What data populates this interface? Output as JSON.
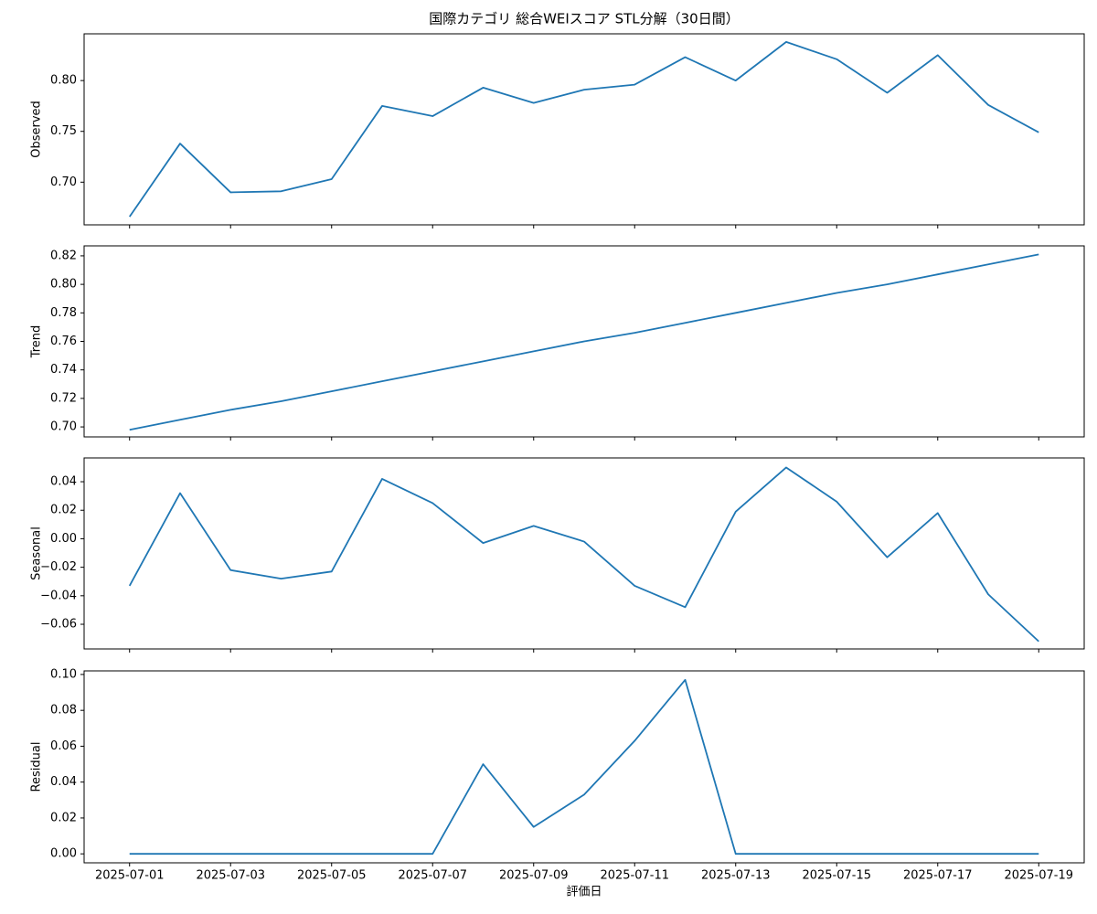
{
  "chart_data": [
    {
      "type": "line",
      "title": "国際カテゴリ 総合WEIスコア STL分解（30日間）",
      "ylabel": "Observed",
      "series": [
        {
          "color": "#1f77b4",
          "values": [
            0.666,
            0.738,
            0.69,
            0.691,
            0.703,
            0.775,
            0.765,
            0.793,
            0.778,
            0.791,
            0.796,
            0.823,
            0.8,
            0.838,
            0.821,
            0.788,
            0.825,
            0.776,
            0.749
          ]
        }
      ],
      "ylim": [
        0.658,
        0.846
      ],
      "yticks": [
        {
          "value": 0.7,
          "label": "0.70"
        },
        {
          "value": 0.75,
          "label": "0.75"
        },
        {
          "value": 0.8,
          "label": "0.80"
        }
      ]
    },
    {
      "type": "line",
      "ylabel": "Trend",
      "series": [
        {
          "color": "#1f77b4",
          "values": [
            0.698,
            0.705,
            0.712,
            0.718,
            0.725,
            0.732,
            0.739,
            0.746,
            0.753,
            0.76,
            0.766,
            0.773,
            0.78,
            0.787,
            0.794,
            0.8,
            0.807,
            0.814,
            0.821
          ]
        }
      ],
      "ylim": [
        0.693,
        0.827
      ],
      "yticks": [
        {
          "value": 0.7,
          "label": "0.70"
        },
        0.72,
        0.74,
        0.76,
        0.78,
        {
          "value": 0.8,
          "label": "0.80"
        },
        0.82
      ]
    },
    {
      "type": "line",
      "ylabel": "Seasonal",
      "series": [
        {
          "color": "#1f77b4",
          "values": [
            -0.033,
            0.032,
            -0.022,
            -0.028,
            -0.023,
            0.042,
            0.025,
            -0.003,
            0.009,
            -0.002,
            -0.033,
            -0.048,
            0.019,
            0.05,
            0.026,
            -0.013,
            0.018,
            -0.039,
            -0.072
          ]
        }
      ],
      "ylim": [
        -0.0773,
        0.0567
      ],
      "yticks": [
        {
          "value": -0.06,
          "label": "−0.06"
        },
        {
          "value": -0.04,
          "label": "−0.04"
        },
        {
          "value": -0.02,
          "label": "−0.02"
        },
        {
          "value": 0,
          "label": "0.00"
        },
        0.02,
        0.04
      ]
    },
    {
      "type": "line",
      "ylabel": "Residual",
      "xlabel": "評価日",
      "x": [
        "2025-07-01",
        "2025-07-02",
        "2025-07-03",
        "2025-07-04",
        "2025-07-05",
        "2025-07-06",
        "2025-07-07",
        "2025-07-08",
        "2025-07-09",
        "2025-07-10",
        "2025-07-11",
        "2025-07-12",
        "2025-07-13",
        "2025-07-14",
        "2025-07-15",
        "2025-07-16",
        "2025-07-17",
        "2025-07-18",
        "2025-07-19"
      ],
      "xticks": [
        "2025-07-01",
        "2025-07-03",
        "2025-07-05",
        "2025-07-07",
        "2025-07-09",
        "2025-07-11",
        "2025-07-13",
        "2025-07-15",
        "2025-07-17",
        "2025-07-19"
      ],
      "series": [
        {
          "color": "#1f77b4",
          "values": [
            0,
            0,
            0,
            0,
            0,
            0,
            0,
            0.05,
            0.015,
            0.033,
            0.063,
            0.097,
            0,
            0,
            0,
            0,
            0,
            0,
            0
          ]
        }
      ],
      "ylim": [
        -0.005,
        0.102
      ],
      "yticks": [
        {
          "value": 0,
          "label": "0.00"
        },
        0.02,
        0.04,
        0.06,
        0.08,
        {
          "value": 0.1,
          "label": "0.10"
        }
      ]
    }
  ]
}
